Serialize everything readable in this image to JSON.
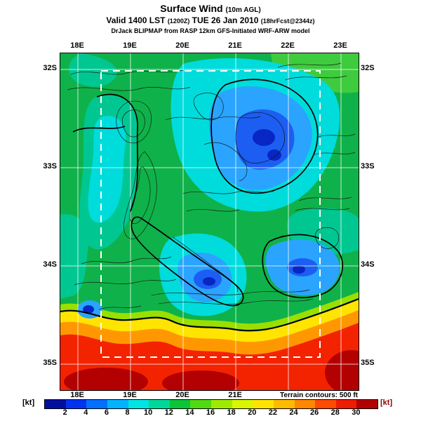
{
  "header": {
    "title": "Surface Wind",
    "title_suffix": "(10m AGL)",
    "valid": {
      "prefix": "Valid 1400 LST",
      "zulu": "(1200Z)",
      "date": "TUE 26 Jan 2010",
      "fcst": "(18hrFcst@2344z)"
    },
    "model_line": "DrJack BLIPMAP from RASP 12km GFS-Initiated WRF-ARW model"
  },
  "map": {
    "lon_top": [
      "18E",
      "19E",
      "20E",
      "21E",
      "22E",
      "23E"
    ],
    "lon_bottom": [
      "18E",
      "19E",
      "20E",
      "21E"
    ],
    "lat_left": [
      "32S",
      "33S",
      "34S",
      "35S"
    ],
    "lat_right": [
      "32S",
      "33S",
      "34S",
      "35S"
    ],
    "terrain_note": "Terrain contours: 500 ft"
  },
  "colorbar": {
    "unit_left": "[kt]",
    "unit_right": "[kt]",
    "tick_labels": [
      "2",
      "4",
      "6",
      "8",
      "10",
      "12",
      "14",
      "16",
      "18",
      "20",
      "22",
      "24",
      "26",
      "28",
      "30"
    ],
    "segment_colors": [
      "#000f9e",
      "#0033f0",
      "#0070ff",
      "#00b4ff",
      "#00e4e4",
      "#00d89a",
      "#0bc437",
      "#51da12",
      "#a0ea00",
      "#d8f600",
      "#ffe400",
      "#ffbb00",
      "#ff8800",
      "#ff4a00",
      "#ee1c00",
      "#b30000"
    ]
  }
}
